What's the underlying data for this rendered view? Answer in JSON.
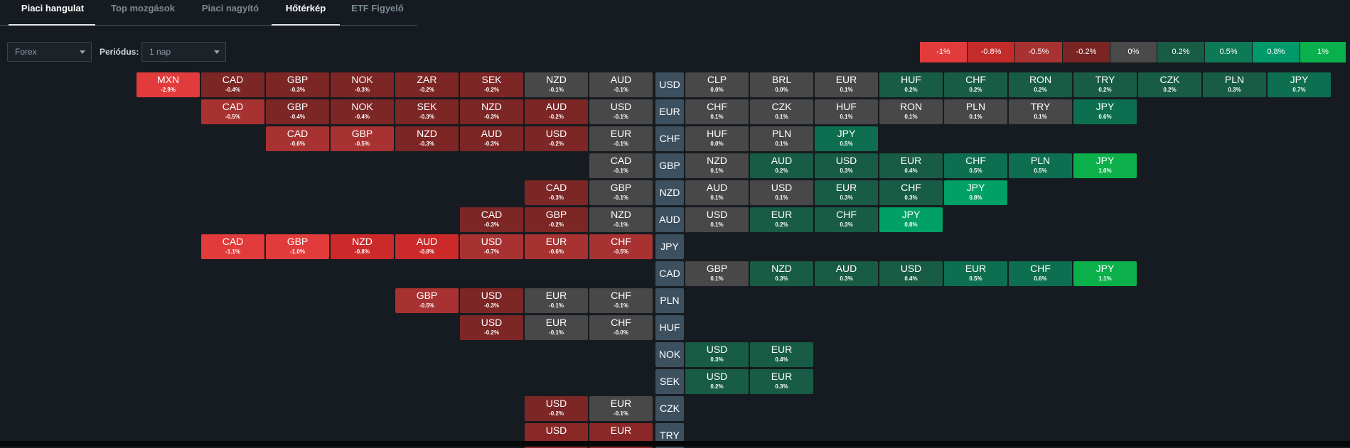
{
  "tabs": [
    {
      "label": "Piaci hangulat",
      "active": true
    },
    {
      "label": "Top mozgások",
      "active": false
    },
    {
      "label": "Piaci nagyító",
      "active": false
    },
    {
      "label": "Hőtérkép",
      "active": true
    },
    {
      "label": "ETF Figyelő",
      "active": false
    }
  ],
  "filters": {
    "market_value": "Forex",
    "period_label": "Periódus:",
    "period_value": "1 nap"
  },
  "legend": [
    "-1%",
    "-0.8%",
    "-0.5%",
    "-0.2%",
    "0%",
    "0.2%",
    "0.5%",
    "0.8%",
    "1%"
  ],
  "heatmap": [
    {
      "base": "USD",
      "left": [
        [
          "MXN",
          "-2.9%"
        ],
        [
          "CAD",
          "-0.4%"
        ],
        [
          "GBP",
          "-0.3%"
        ],
        [
          "NOK",
          "-0.3%"
        ],
        [
          "ZAR",
          "-0.2%"
        ],
        [
          "SEK",
          "-0.2%"
        ],
        [
          "NZD",
          "-0.1%"
        ],
        [
          "AUD",
          "-0.1%"
        ]
      ],
      "right": [
        [
          "CLP",
          "0.0%"
        ],
        [
          "BRL",
          "0.0%"
        ],
        [
          "EUR",
          "0.1%"
        ],
        [
          "HUF",
          "0.2%"
        ],
        [
          "CHF",
          "0.2%"
        ],
        [
          "RON",
          "0.2%"
        ],
        [
          "TRY",
          "0.2%"
        ],
        [
          "CZK",
          "0.2%"
        ],
        [
          "PLN",
          "0.3%"
        ],
        [
          "JPY",
          "0.7%"
        ]
      ]
    },
    {
      "base": "EUR",
      "left": [
        [
          "CAD",
          "-0.5%"
        ],
        [
          "GBP",
          "-0.4%"
        ],
        [
          "NOK",
          "-0.4%"
        ],
        [
          "SEK",
          "-0.3%"
        ],
        [
          "NZD",
          "-0.3%"
        ],
        [
          "AUD",
          "-0.2%"
        ],
        [
          "USD",
          "-0.1%"
        ]
      ],
      "right": [
        [
          "CHF",
          "0.1%"
        ],
        [
          "CZK",
          "0.1%"
        ],
        [
          "HUF",
          "0.1%"
        ],
        [
          "RON",
          "0.1%"
        ],
        [
          "PLN",
          "0.1%"
        ],
        [
          "TRY",
          "0.1%"
        ],
        [
          "JPY",
          "0.6%"
        ]
      ]
    },
    {
      "base": "CHF",
      "left": [
        [
          "CAD",
          "-0.6%"
        ],
        [
          "GBP",
          "-0.5%"
        ],
        [
          "NZD",
          "-0.3%"
        ],
        [
          "AUD",
          "-0.3%"
        ],
        [
          "USD",
          "-0.2%"
        ],
        [
          "EUR",
          "-0.1%"
        ]
      ],
      "right": [
        [
          "HUF",
          "0.0%"
        ],
        [
          "PLN",
          "0.1%"
        ],
        [
          "JPY",
          "0.5%"
        ]
      ]
    },
    {
      "base": "GBP",
      "left": [
        [
          "CAD",
          "-0.1%"
        ]
      ],
      "right": [
        [
          "NZD",
          "0.1%"
        ],
        [
          "AUD",
          "0.2%"
        ],
        [
          "USD",
          "0.3%"
        ],
        [
          "EUR",
          "0.4%"
        ],
        [
          "CHF",
          "0.5%"
        ],
        [
          "PLN",
          "0.5%"
        ],
        [
          "JPY",
          "1.0%"
        ]
      ]
    },
    {
      "base": "NZD",
      "left": [
        [
          "CAD",
          "-0.3%"
        ],
        [
          "GBP",
          "-0.1%"
        ]
      ],
      "right": [
        [
          "AUD",
          "0.1%"
        ],
        [
          "USD",
          "0.1%"
        ],
        [
          "EUR",
          "0.3%"
        ],
        [
          "CHF",
          "0.3%"
        ],
        [
          "JPY",
          "0.8%"
        ]
      ]
    },
    {
      "base": "AUD",
      "left": [
        [
          "CAD",
          "-0.3%"
        ],
        [
          "GBP",
          "-0.2%"
        ],
        [
          "NZD",
          "-0.1%"
        ]
      ],
      "right": [
        [
          "USD",
          "0.1%"
        ],
        [
          "EUR",
          "0.2%"
        ],
        [
          "CHF",
          "0.3%"
        ],
        [
          "JPY",
          "0.8%"
        ]
      ]
    },
    {
      "base": "JPY",
      "left": [
        [
          "CAD",
          "-1.1%"
        ],
        [
          "GBP",
          "-1.0%"
        ],
        [
          "NZD",
          "-0.8%"
        ],
        [
          "AUD",
          "-0.8%"
        ],
        [
          "USD",
          "-0.7%"
        ],
        [
          "EUR",
          "-0.6%"
        ],
        [
          "CHF",
          "-0.5%"
        ]
      ],
      "right": []
    },
    {
      "base": "CAD",
      "left": [],
      "right": [
        [
          "GBP",
          "0.1%"
        ],
        [
          "NZD",
          "0.3%"
        ],
        [
          "AUD",
          "0.3%"
        ],
        [
          "USD",
          "0.4%"
        ],
        [
          "EUR",
          "0.5%"
        ],
        [
          "CHF",
          "0.6%"
        ],
        [
          "JPY",
          "1.1%"
        ]
      ]
    },
    {
      "base": "PLN",
      "left": [
        [
          "GBP",
          "-0.5%"
        ],
        [
          "USD",
          "-0.3%"
        ],
        [
          "EUR",
          "-0.1%"
        ],
        [
          "CHF",
          "-0.1%"
        ]
      ],
      "right": []
    },
    {
      "base": "HUF",
      "left": [
        [
          "USD",
          "-0.2%"
        ],
        [
          "EUR",
          "-0.1%"
        ],
        [
          "CHF",
          "-0.0%"
        ]
      ],
      "right": []
    },
    {
      "base": "NOK",
      "left": [],
      "right": [
        [
          "USD",
          "0.3%"
        ],
        [
          "EUR",
          "0.4%"
        ]
      ]
    },
    {
      "base": "SEK",
      "left": [],
      "right": [
        [
          "USD",
          "0.2%"
        ],
        [
          "EUR",
          "0.3%"
        ]
      ]
    },
    {
      "base": "CZK",
      "left": [
        [
          "USD",
          "-0.2%"
        ],
        [
          "EUR",
          "-0.1%"
        ]
      ],
      "right": []
    },
    {
      "base": "TRY",
      "left": [
        [
          "USD",
          ""
        ],
        [
          "EUR",
          ""
        ]
      ],
      "right": []
    }
  ]
}
